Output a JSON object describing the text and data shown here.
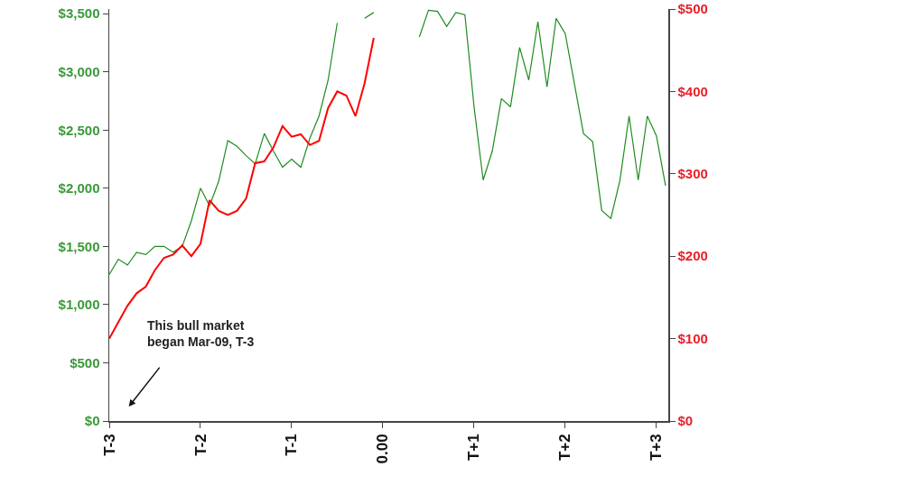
{
  "chart_data": {
    "type": "line",
    "annotations": [
      "This bull market\nbegan Mar-09, T-3"
    ],
    "categories": [
      "T-3",
      null,
      null,
      null,
      null,
      null,
      null,
      null,
      null,
      null,
      "T-2",
      null,
      null,
      null,
      null,
      null,
      null,
      null,
      null,
      null,
      "T-1",
      null,
      null,
      null,
      null,
      null,
      null,
      null,
      null,
      null,
      "0.00",
      null,
      null,
      null,
      null,
      null,
      null,
      null,
      null,
      null,
      "T+1",
      null,
      null,
      null,
      null,
      null,
      null,
      null,
      null,
      null,
      "T+2",
      null,
      null,
      null,
      null,
      null,
      null,
      null,
      null,
      null,
      "T+3",
      null
    ],
    "ylim": [
      0,
      3540
    ],
    "yticks": [
      {
        "value": 0,
        "label": "$0"
      },
      {
        "value": 500,
        "label": "$500"
      },
      {
        "value": 1000,
        "label": "$1,000"
      },
      {
        "value": 1500,
        "label": "$1,500"
      },
      {
        "value": 2000,
        "label": "$2,000"
      },
      {
        "value": 2500,
        "label": "$2,500"
      },
      {
        "value": 3000,
        "label": "$3,000"
      },
      {
        "value": 3500,
        "label": "$3,500"
      }
    ],
    "y2lim": [
      0,
      500
    ],
    "y2ticks": [
      {
        "value": 0,
        "label": "$0"
      },
      {
        "value": 100,
        "label": "$100"
      },
      {
        "value": 200,
        "label": "$200"
      },
      {
        "value": 300,
        "label": "$300"
      },
      {
        "value": 400,
        "label": "$400"
      },
      {
        "value": 500,
        "label": "$500"
      }
    ],
    "grid": false,
    "marker": "none",
    "line_style": "solid",
    "series": [
      {
        "color": "#1e8c1e",
        "values": [
          1260,
          1390,
          1340,
          1450,
          1430,
          1500,
          1500,
          1450,
          1500,
          1720,
          2000,
          1850,
          2060,
          2410,
          2360,
          2280,
          2210,
          2470,
          2320,
          2180,
          2250,
          2180,
          2430,
          2620,
          2930,
          3420,
          null,
          null,
          3460,
          3510,
          null,
          null,
          null,
          null,
          3300,
          3530,
          3520,
          3390,
          3510,
          3490,
          2700,
          2070,
          2320,
          2770,
          2700,
          3210,
          2930,
          3430,
          2870,
          3460,
          3330,
          2900,
          2470,
          2400,
          1810,
          1740,
          2070,
          2620,
          2070,
          2620,
          2450,
          2020
        ]
      },
      {
        "color": "#ff0000",
        "axis": "y2",
        "values": [
          100,
          120,
          140,
          155,
          163,
          183,
          198,
          202,
          213,
          200,
          215,
          268,
          255,
          250,
          255,
          270,
          313,
          315,
          332,
          358,
          345,
          348,
          335,
          340,
          380,
          400,
          395,
          370,
          410,
          465,
          null,
          null,
          null,
          null,
          null,
          null,
          null,
          null,
          null,
          null,
          null,
          null,
          null,
          null,
          null,
          null,
          null,
          null,
          null,
          null,
          null,
          null,
          null,
          null,
          null,
          null,
          null,
          null,
          null,
          null,
          null,
          null
        ]
      }
    ]
  }
}
